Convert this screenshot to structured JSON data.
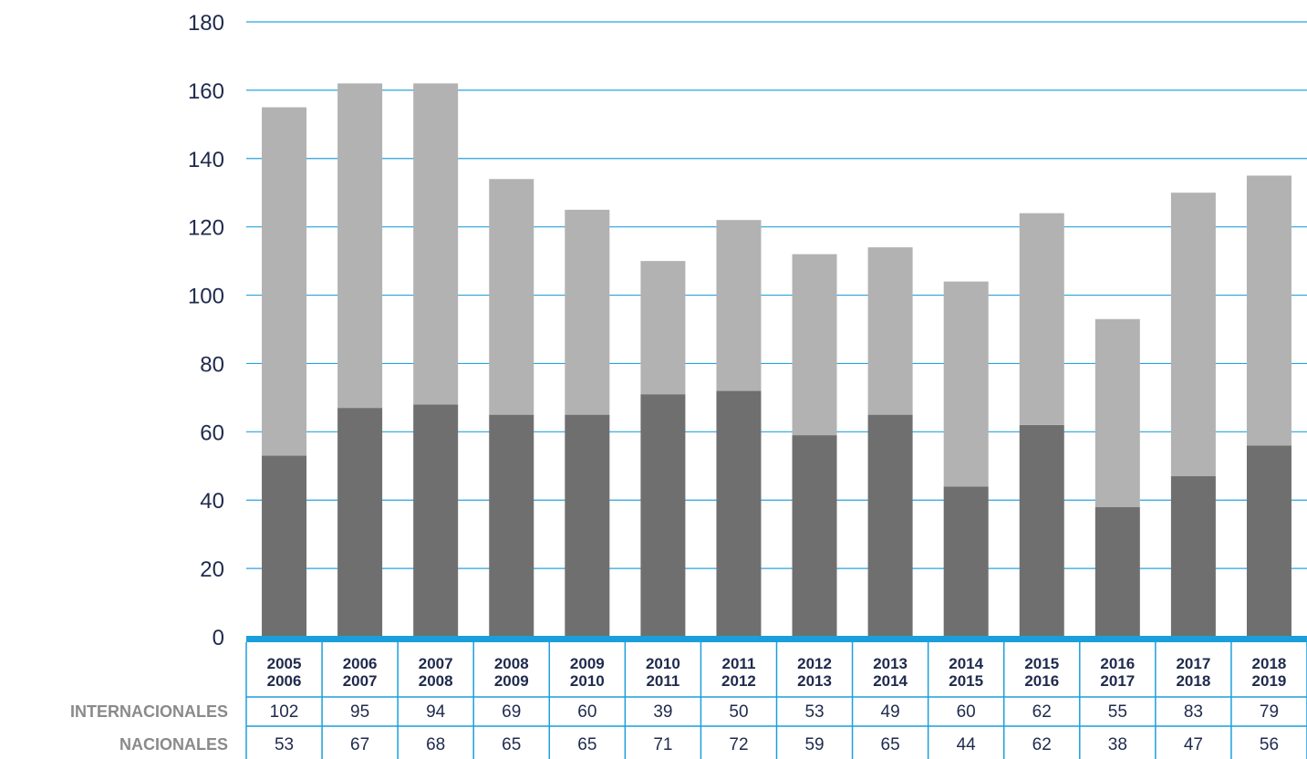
{
  "chart_data": {
    "type": "bar",
    "stacked": true,
    "categories": [
      [
        "2005",
        "2006"
      ],
      [
        "2006",
        "2007"
      ],
      [
        "2007",
        "2008"
      ],
      [
        "2008",
        "2009"
      ],
      [
        "2009",
        "2010"
      ],
      [
        "2010",
        "2011"
      ],
      [
        "2011",
        "2012"
      ],
      [
        "2012",
        "2013"
      ],
      [
        "2013",
        "2014"
      ],
      [
        "2014",
        "2015"
      ],
      [
        "2015",
        "2016"
      ],
      [
        "2016",
        "2017"
      ],
      [
        "2017",
        "2018"
      ],
      [
        "2018",
        "2019"
      ]
    ],
    "series": [
      {
        "name": "NACIONALES",
        "values": [
          53,
          67,
          68,
          65,
          65,
          71,
          72,
          59,
          65,
          44,
          62,
          38,
          47,
          56
        ],
        "color": "#706f6f"
      },
      {
        "name": "INTERNACIONALES",
        "values": [
          102,
          95,
          94,
          69,
          60,
          39,
          50,
          53,
          49,
          60,
          62,
          55,
          83,
          79
        ],
        "color": "#b2b2b2"
      }
    ],
    "table_rows": [
      {
        "label": "INTERNACIONALES",
        "values": [
          "102",
          "95",
          "94",
          "69",
          "60",
          "39",
          "50",
          "53",
          "49",
          "60",
          "62",
          "55",
          "83",
          "79"
        ]
      },
      {
        "label": "NACIONALES",
        "values": [
          "53",
          "67",
          "68",
          "65",
          "65",
          "71",
          "72",
          "59",
          "65",
          "44",
          "62",
          "38",
          "47",
          "56"
        ]
      }
    ],
    "yticks": [
      "0",
      "20",
      "40",
      "60",
      "80",
      "100",
      "120",
      "140",
      "160",
      "180"
    ],
    "ylim": [
      0,
      180
    ],
    "grid": true,
    "colors": {
      "grid": "#29a3dc",
      "axis": "#1a9fdc",
      "text": "#1f2a4d",
      "label": "#8a8a8a"
    }
  }
}
